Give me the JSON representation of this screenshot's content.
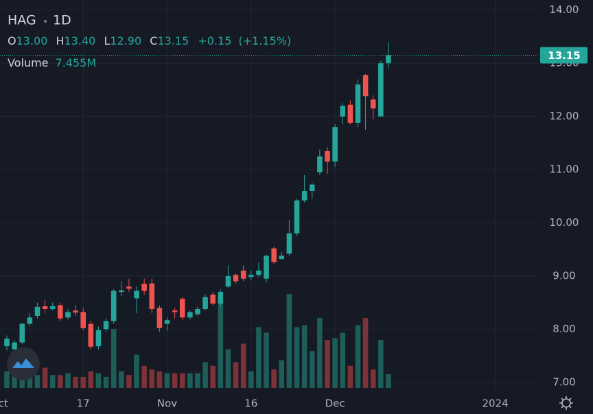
{
  "header": {
    "symbol": "HAG",
    "interval": "1D",
    "open_label": "O",
    "open": "13.00",
    "high_label": "H",
    "high": "13.40",
    "low_label": "L",
    "low": "12.90",
    "close_label": "C",
    "close": "13.15",
    "change": "+0.15",
    "change_pct": "(+1.15%)",
    "volume_label": "Volume",
    "volume": "7.455M"
  },
  "chart_data": {
    "type": "candlestick",
    "x": [
      0,
      1,
      2,
      3,
      4,
      5,
      6,
      7,
      8,
      9,
      10,
      11,
      12,
      13,
      14,
      15,
      16,
      17,
      18,
      19,
      20,
      21,
      22,
      23,
      24,
      25,
      26,
      27,
      28,
      29,
      30,
      31,
      32,
      33,
      34,
      35,
      36,
      37,
      38,
      39,
      40,
      41,
      42,
      43,
      44,
      45,
      46,
      47,
      48,
      49,
      50
    ],
    "open": [
      7.68,
      7.62,
      7.75,
      8.1,
      8.25,
      8.43,
      8.38,
      8.45,
      8.22,
      8.35,
      8.32,
      8.1,
      7.68,
      8.0,
      8.15,
      8.7,
      8.8,
      8.58,
      8.85,
      8.86,
      8.4,
      8.1,
      8.35,
      8.57,
      8.22,
      8.28,
      8.38,
      8.65,
      8.48,
      8.8,
      9.02,
      9.1,
      8.98,
      9.02,
      8.95,
      9.52,
      9.32,
      9.42,
      9.8,
      10.42,
      10.6,
      10.95,
      11.35,
      11.15,
      12.0,
      12.22,
      11.88,
      12.78,
      12.32,
      12.0,
      13.0
    ],
    "high": [
      7.88,
      7.8,
      8.12,
      8.3,
      8.5,
      8.55,
      8.5,
      8.5,
      8.38,
      8.45,
      8.4,
      8.15,
      8.05,
      8.2,
      8.75,
      8.9,
      8.95,
      8.8,
      8.95,
      8.95,
      8.45,
      8.22,
      8.4,
      8.6,
      8.35,
      8.42,
      8.65,
      8.7,
      8.75,
      9.2,
      9.05,
      9.2,
      9.1,
      9.25,
      9.4,
      9.55,
      9.45,
      10.05,
      10.45,
      10.9,
      10.75,
      11.38,
      11.42,
      11.85,
      12.25,
      12.3,
      12.7,
      12.8,
      12.4,
      13.05,
      13.4
    ],
    "low": [
      7.6,
      7.55,
      7.72,
      8.05,
      8.2,
      8.3,
      8.35,
      8.15,
      8.18,
      8.25,
      7.98,
      7.62,
      7.62,
      7.95,
      8.1,
      8.62,
      8.7,
      8.3,
      8.65,
      8.3,
      7.95,
      7.97,
      8.2,
      8.18,
      8.18,
      8.25,
      8.35,
      8.45,
      8.42,
      8.78,
      8.85,
      8.9,
      8.92,
      8.98,
      8.88,
      9.22,
      9.3,
      9.38,
      9.75,
      10.38,
      10.45,
      10.9,
      10.92,
      11.05,
      11.85,
      11.85,
      11.8,
      11.75,
      11.95,
      12.0,
      12.9
    ],
    "close": [
      7.82,
      7.75,
      8.1,
      8.22,
      8.42,
      8.38,
      8.43,
      8.2,
      8.32,
      8.31,
      8.02,
      7.67,
      7.98,
      8.15,
      8.72,
      8.73,
      8.76,
      8.72,
      8.72,
      8.38,
      8.02,
      8.17,
      8.32,
      8.22,
      8.32,
      8.38,
      8.6,
      8.48,
      8.7,
      9.0,
      8.9,
      8.95,
      9.02,
      9.1,
      9.38,
      9.26,
      9.38,
      9.8,
      10.42,
      10.6,
      10.72,
      11.25,
      11.15,
      11.8,
      12.2,
      11.88,
      12.6,
      12.38,
      12.15,
      13.0,
      13.15
    ],
    "volume": [
      9,
      7,
      10,
      8,
      7,
      11,
      7,
      7,
      8,
      6,
      6,
      9,
      8,
      6,
      32,
      9,
      7,
      18,
      12,
      10,
      9,
      8,
      8,
      8,
      8,
      8,
      14,
      12,
      46,
      21,
      14,
      24,
      9,
      33,
      30,
      10,
      15,
      51,
      33,
      34,
      20,
      38,
      26,
      27,
      30,
      12,
      34,
      38,
      10,
      26,
      7.455
    ],
    "up_color": "#26a69a",
    "down_color": "#ef5350",
    "volume_up_color": "#1d5e58",
    "volume_down_color": "#7c3236",
    "xlim": [
      -0.9,
      69.7
    ],
    "xticks": [
      {
        "value": -1,
        "label": "Oct"
      },
      {
        "value": 10,
        "label": "17"
      },
      {
        "value": 21,
        "label": "Nov"
      },
      {
        "value": 32,
        "label": "16"
      },
      {
        "value": 43,
        "label": "Dec"
      },
      {
        "value": 64,
        "label": "2024"
      }
    ],
    "ylim": [
      6.83,
      14.19
    ],
    "yticks": [
      {
        "value": 7,
        "label": "7.00"
      },
      {
        "value": 8,
        "label": "8.00"
      },
      {
        "value": 9,
        "label": "9.00"
      },
      {
        "value": 10,
        "label": "10.00"
      },
      {
        "value": 11,
        "label": "11.00"
      },
      {
        "value": 12,
        "label": "12.00"
      },
      {
        "value": 13,
        "label": "13.00"
      },
      {
        "value": 14,
        "label": "14.00"
      }
    ],
    "vlim": [
      0,
      60
    ],
    "grid": true
  }
}
